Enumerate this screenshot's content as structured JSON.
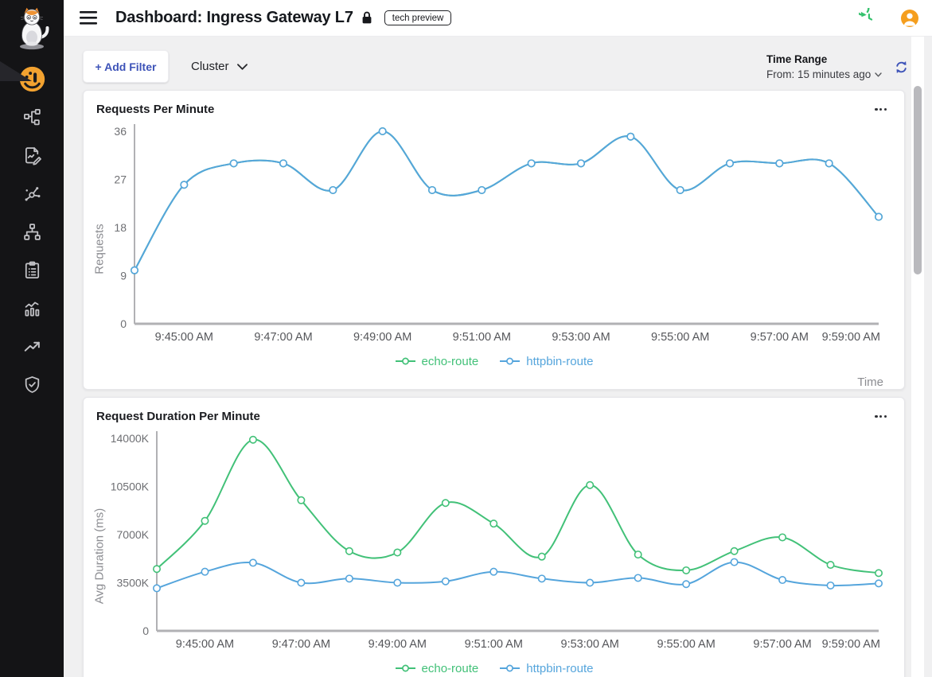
{
  "header": {
    "title": "Dashboard: Ingress Gateway L7",
    "badge": "tech preview",
    "icons": [
      "menu-icon",
      "lock-icon",
      "history-icon",
      "user-avatar-icon"
    ]
  },
  "sidebar": {
    "logo_icon": "kuma-cat-logo",
    "items": [
      {
        "icon": "gauge-icon",
        "active": true
      },
      {
        "icon": "topology-icon",
        "active": false
      },
      {
        "icon": "report-edit-icon",
        "active": false
      },
      {
        "icon": "service-graph-icon",
        "active": false
      },
      {
        "icon": "sitemap-icon",
        "active": false
      },
      {
        "icon": "checklist-icon",
        "active": false
      },
      {
        "icon": "analytics-icon",
        "active": false
      },
      {
        "icon": "trending-up-icon",
        "active": false
      },
      {
        "icon": "shield-check-icon",
        "active": false
      }
    ]
  },
  "toolbar": {
    "add_filter_label": "+ Add Filter",
    "cluster_label": "Cluster",
    "time_range_label": "Time Range",
    "time_range_value": "From: 15 minutes ago",
    "refresh_icon": "refresh-icon"
  },
  "colors": {
    "accent_blue": "#3d53b8",
    "active_orange": "#f2a230",
    "history_green": "#36c26e",
    "avatar_orange": "#f59e1d",
    "chart_green": "#42c178",
    "chart_blue": "#55a5dc"
  },
  "chart_data": [
    {
      "type": "line",
      "title": "Requests Per Minute",
      "xlabel": "Time",
      "ylabel": "Requests",
      "x": [
        "9:44:00 AM",
        "9:45:00 AM",
        "9:46:00 AM",
        "9:47:00 AM",
        "9:48:00 AM",
        "9:49:00 AM",
        "9:50:00 AM",
        "9:51:00 AM",
        "9:52:00 AM",
        "9:53:00 AM",
        "9:54:00 AM",
        "9:55:00 AM",
        "9:56:00 AM",
        "9:57:00 AM",
        "9:58:00 AM",
        "9:59:00 AM"
      ],
      "x_tick_labels": [
        "9:45:00 AM",
        "9:47:00 AM",
        "9:49:00 AM",
        "9:51:00 AM",
        "9:53:00 AM",
        "9:55:00 AM",
        "9:57:00 AM",
        "9:59:00 AM"
      ],
      "x_tick_indices": [
        1,
        3,
        5,
        7,
        9,
        11,
        13,
        15
      ],
      "ylim": [
        0,
        36
      ],
      "yticks": [
        0,
        9,
        18,
        27,
        36
      ],
      "ytick_labels": [
        "0",
        "9",
        "18",
        "27",
        "36"
      ],
      "grid": false,
      "legend_position": "bottom",
      "series": [
        {
          "name": "echo-route",
          "color": "#42c178",
          "values": [
            10,
            26,
            30,
            30,
            25,
            36,
            25,
            25,
            30,
            30,
            35,
            25,
            30,
            30,
            30,
            20
          ]
        },
        {
          "name": "httpbin-route",
          "color": "#55a5dc",
          "values": [
            10,
            26,
            30,
            30,
            25,
            36,
            25,
            25,
            30,
            30,
            35,
            25,
            30,
            30,
            30,
            20
          ]
        }
      ]
    },
    {
      "type": "line",
      "title": "Request Duration Per Minute",
      "xlabel": "",
      "ylabel": "Avg Duration (ms)",
      "x": [
        "9:44:00 AM",
        "9:45:00 AM",
        "9:46:00 AM",
        "9:47:00 AM",
        "9:48:00 AM",
        "9:49:00 AM",
        "9:50:00 AM",
        "9:51:00 AM",
        "9:52:00 AM",
        "9:53:00 AM",
        "9:54:00 AM",
        "9:55:00 AM",
        "9:56:00 AM",
        "9:57:00 AM",
        "9:58:00 AM",
        "9:59:00 AM"
      ],
      "x_tick_labels": [
        "9:45:00 AM",
        "9:47:00 AM",
        "9:49:00 AM",
        "9:51:00 AM",
        "9:53:00 AM",
        "9:55:00 AM",
        "9:57:00 AM",
        "9:59:00 AM"
      ],
      "x_tick_indices": [
        1,
        3,
        5,
        7,
        9,
        11,
        13,
        15
      ],
      "ylim": [
        0,
        14000
      ],
      "y_unit": "K",
      "yticks": [
        0,
        3500,
        7000,
        10500,
        14000
      ],
      "ytick_labels": [
        "0",
        "3500K",
        "7000K",
        "10500K",
        "14000K"
      ],
      "grid": false,
      "legend_position": "bottom",
      "series": [
        {
          "name": "echo-route",
          "color": "#42c178",
          "values": [
            4500,
            8000,
            13900,
            9500,
            5800,
            5700,
            9300,
            7800,
            5400,
            10600,
            5550,
            4400,
            5800,
            6800,
            4800,
            4200
          ]
        },
        {
          "name": "httpbin-route",
          "color": "#55a5dc",
          "values": [
            3100,
            4300,
            4950,
            3500,
            3800,
            3500,
            3600,
            4300,
            3800,
            3500,
            3850,
            3400,
            5000,
            3700,
            3300,
            3450
          ]
        }
      ]
    }
  ]
}
